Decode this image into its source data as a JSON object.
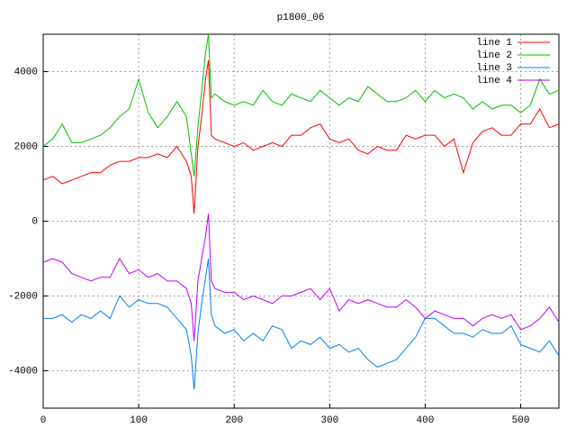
{
  "chart_data": {
    "type": "line",
    "title": "p1800_06",
    "x": [
      0,
      10,
      20,
      30,
      40,
      50,
      60,
      70,
      80,
      90,
      100,
      110,
      120,
      130,
      140,
      150,
      155,
      158,
      162,
      166,
      170,
      173,
      176,
      180,
      190,
      200,
      210,
      220,
      230,
      240,
      250,
      260,
      270,
      280,
      290,
      300,
      310,
      320,
      330,
      340,
      350,
      360,
      370,
      380,
      390,
      400,
      410,
      420,
      430,
      440,
      450,
      460,
      470,
      480,
      490,
      500,
      510,
      520,
      530,
      540
    ],
    "series": [
      {
        "name": "line 1",
        "color": "#ff0000",
        "values": [
          1100,
          1200,
          1000,
          1100,
          1200,
          1300,
          1300,
          1500,
          1600,
          1600,
          1700,
          1700,
          1800,
          1700,
          2000,
          1600,
          1200,
          200,
          2000,
          2800,
          3800,
          4300,
          2300,
          2200,
          2100,
          2000,
          2100,
          1900,
          2000,
          2100,
          2000,
          2300,
          2300,
          2500,
          2600,
          2200,
          2100,
          2200,
          1900,
          1800,
          2000,
          1900,
          1900,
          2300,
          2200,
          2300,
          2300,
          2000,
          2200,
          1300,
          2100,
          2400,
          2500,
          2300,
          2300,
          2600,
          2600,
          3000,
          2500,
          2600
        ]
      },
      {
        "name": "line 2",
        "color": "#00c000",
        "values": [
          2000,
          2200,
          2600,
          2100,
          2100,
          2200,
          2300,
          2500,
          2800,
          3000,
          3800,
          2900,
          2500,
          2800,
          3200,
          2800,
          1800,
          1200,
          2500,
          3500,
          4500,
          5000,
          3300,
          3400,
          3200,
          3100,
          3200,
          3100,
          3500,
          3200,
          3100,
          3400,
          3300,
          3200,
          3500,
          3300,
          3100,
          3300,
          3200,
          3600,
          3400,
          3200,
          3200,
          3300,
          3500,
          3200,
          3500,
          3300,
          3400,
          3300,
          3000,
          3200,
          3000,
          3100,
          3100,
          2900,
          3100,
          3800,
          3400,
          3500
        ]
      },
      {
        "name": "line 3",
        "color": "#0080ff",
        "values": [
          -2600,
          -2600,
          -2500,
          -2700,
          -2500,
          -2600,
          -2400,
          -2600,
          -2000,
          -2300,
          -2100,
          -2200,
          -2200,
          -2300,
          -2600,
          -2900,
          -3600,
          -4500,
          -3000,
          -2200,
          -1500,
          -1000,
          -2500,
          -2800,
          -3000,
          -2900,
          -3200,
          -3000,
          -3200,
          -2800,
          -2900,
          -3400,
          -3200,
          -3300,
          -3100,
          -3400,
          -3300,
          -3500,
          -3400,
          -3700,
          -3900,
          -3800,
          -3700,
          -3400,
          -3100,
          -2600,
          -2600,
          -2800,
          -3000,
          -3000,
          -3100,
          -2900,
          -3000,
          -3000,
          -2800,
          -3300,
          -3400,
          -3500,
          -3200,
          -3600
        ]
      },
      {
        "name": "line 4",
        "color": "#c000ff",
        "values": [
          -1100,
          -1000,
          -1100,
          -1400,
          -1500,
          -1600,
          -1500,
          -1500,
          -1000,
          -1400,
          -1300,
          -1500,
          -1400,
          -1600,
          -1600,
          -1800,
          -2200,
          -3200,
          -1600,
          -1000,
          -400,
          200,
          -1600,
          -1800,
          -1900,
          -1900,
          -2100,
          -2000,
          -2100,
          -2200,
          -2000,
          -2000,
          -1900,
          -1800,
          -2100,
          -1800,
          -2400,
          -2100,
          -2200,
          -2100,
          -2200,
          -2300,
          -2300,
          -2100,
          -2300,
          -2600,
          -2400,
          -2500,
          -2600,
          -2600,
          -2800,
          -2600,
          -2500,
          -2600,
          -2500,
          -2900,
          -2800,
          -2600,
          -2300,
          -2700
        ]
      }
    ],
    "xlim": [
      0,
      540
    ],
    "xticks": [
      0,
      100,
      200,
      300,
      400,
      500
    ],
    "ylim": [
      -5000,
      5000
    ],
    "yticks": [
      -4000,
      -2000,
      0,
      2000,
      4000
    ],
    "grid": true,
    "legend": "top-right"
  }
}
